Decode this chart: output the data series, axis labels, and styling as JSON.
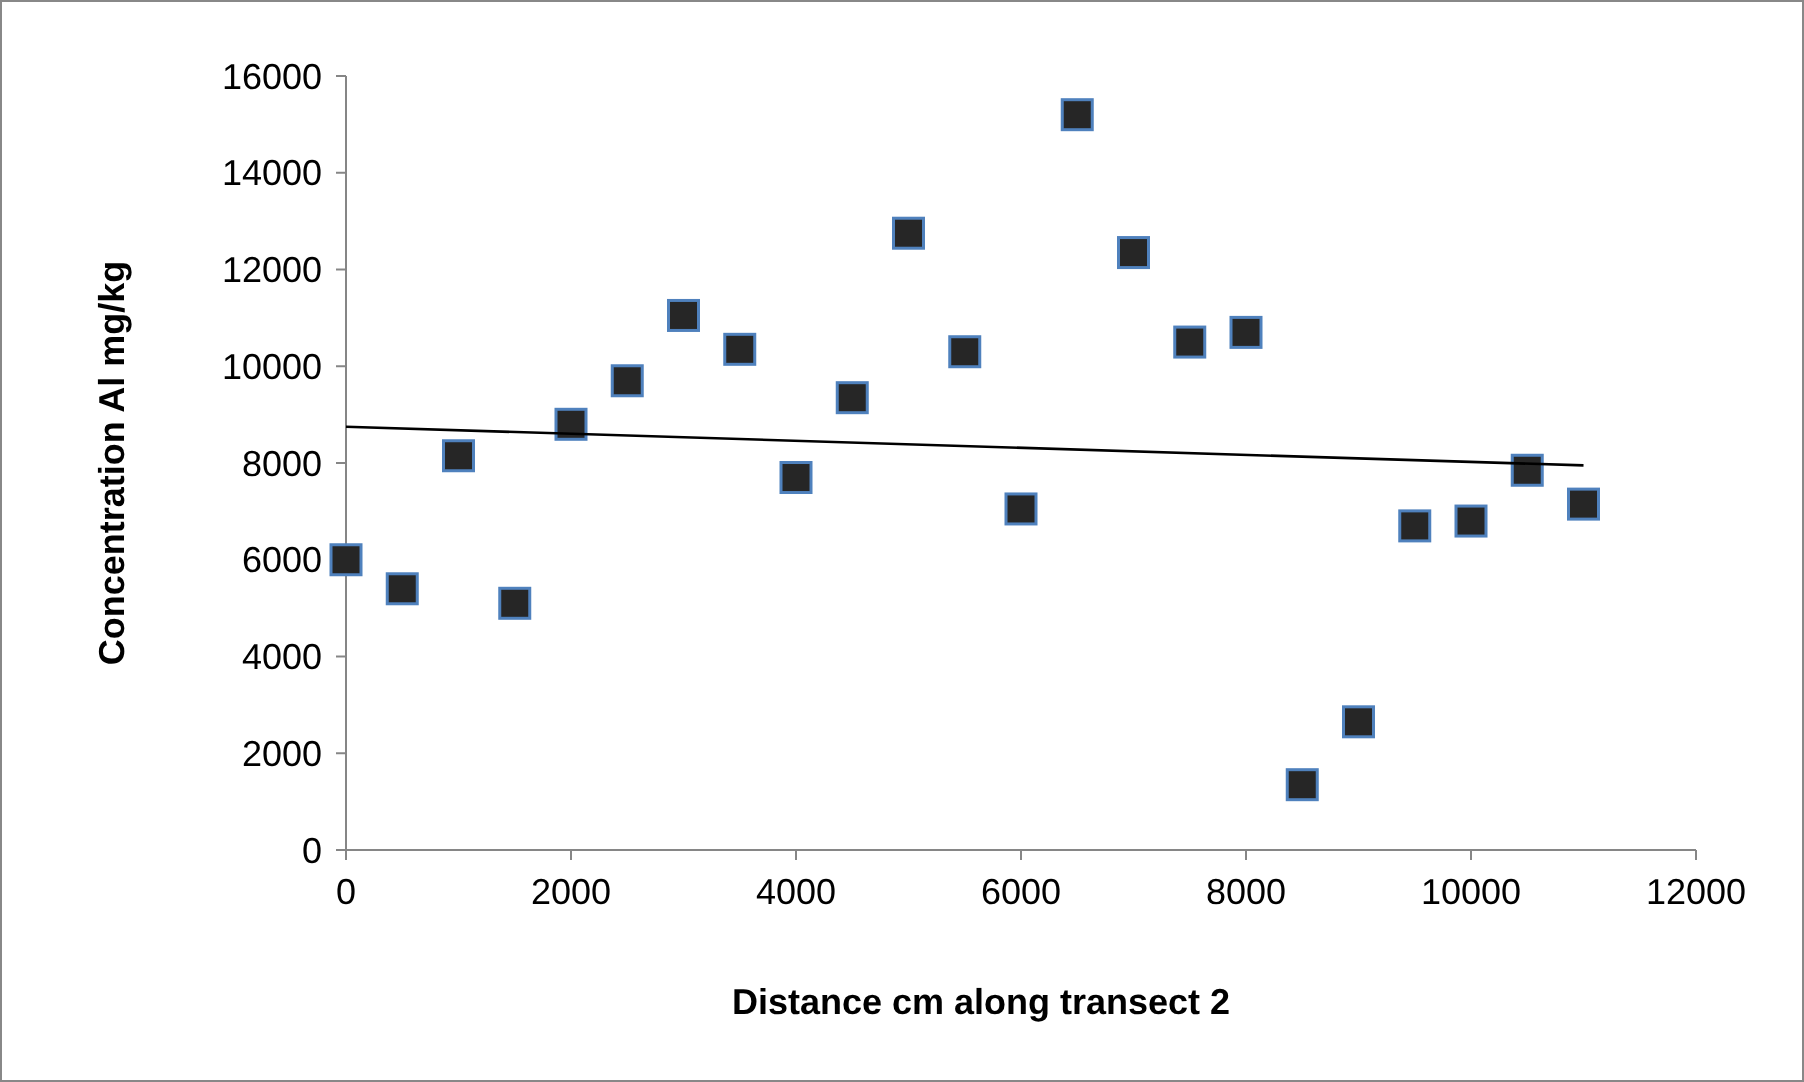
{
  "chart_data": {
    "type": "scatter",
    "xlabel": "Distance cm along transect 2",
    "ylabel": "Concentration Al mg/kg",
    "xlim": [
      0,
      12000
    ],
    "xticks": [
      0,
      2000,
      4000,
      6000,
      8000,
      10000,
      12000
    ],
    "ylim": [
      0,
      16000
    ],
    "yticks": [
      0,
      2000,
      4000,
      6000,
      8000,
      10000,
      12000,
      14000,
      16000
    ],
    "grid": false,
    "marker": "square",
    "series": [
      {
        "color": "#262626",
        "x": [
          0,
          500,
          1000,
          1500,
          2000,
          2500,
          3000,
          3500,
          4000,
          4500,
          5000,
          5500,
          6000,
          6500,
          7000,
          7500,
          8000,
          8500,
          9000,
          9500,
          10000,
          10500,
          11000
        ],
        "values": [
          6000,
          5400,
          8150,
          5100,
          8800,
          9700,
          11050,
          10350,
          7700,
          9350,
          12750,
          10300,
          7050,
          15200,
          12350,
          10500,
          10700,
          1350,
          2650,
          6700,
          6800,
          7850,
          7150
        ]
      },
      {
        "type": "line",
        "color": "#000000",
        "marker": "none",
        "x": [
          0,
          11000
        ],
        "values": [
          8750,
          7950
        ]
      }
    ]
  }
}
